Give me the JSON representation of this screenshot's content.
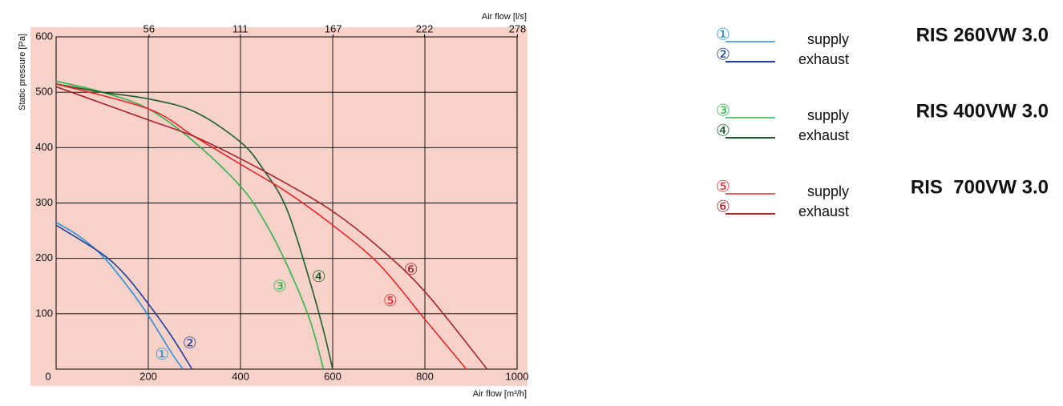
{
  "chart_data": {
    "type": "line",
    "y_label": "Static pressure [Pa]",
    "x_label": "Air flow [m³/h]",
    "x2_label": "Air flow [l/s]",
    "xlim": [
      0,
      1000
    ],
    "xticks": [
      0,
      200,
      400,
      600,
      800,
      1000
    ],
    "x2lim": [
      0,
      277.78
    ],
    "x2ticks": [
      56,
      111,
      167,
      222,
      278
    ],
    "ylim": [
      0,
      600
    ],
    "yticks": [
      100,
      200,
      300,
      400,
      500,
      600
    ],
    "grid": true,
    "background": "#f8d1c9",
    "groups": [
      "RIS 260VW 3.0",
      "RIS 400VW 3.0",
      "RIS  700VW 3.0"
    ],
    "series": [
      {
        "name": "supply",
        "label": "①",
        "color": "#2a8fd6",
        "label_at": [
          230,
          25
        ],
        "x": [
          0,
          50,
          100,
          150,
          200,
          250,
          275
        ],
        "values": [
          265,
          240,
          205,
          155,
          97,
          30,
          0
        ]
      },
      {
        "name": "exhaust",
        "label": "②",
        "color": "#1f3f9a",
        "label_at": [
          290,
          45
        ],
        "x": [
          0,
          100,
          150,
          200,
          250,
          295
        ],
        "values": [
          260,
          208,
          170,
          118,
          60,
          0
        ]
      },
      {
        "name": "supply",
        "label": "③",
        "color": "#2fb34a",
        "label_at": [
          485,
          148
        ],
        "x": [
          0,
          100,
          200,
          300,
          400,
          450,
          500,
          550,
          580
        ],
        "values": [
          520,
          500,
          470,
          410,
          330,
          270,
          190,
          90,
          0
        ]
      },
      {
        "name": "exhaust",
        "label": "④",
        "color": "#1a5e2a",
        "label_at": [
          570,
          165
        ],
        "x": [
          0,
          100,
          200,
          300,
          400,
          450,
          500,
          550,
          580,
          600
        ],
        "values": [
          515,
          500,
          488,
          465,
          410,
          360,
          290,
          160,
          70,
          0
        ]
      },
      {
        "name": "supply",
        "label": "⑤",
        "color": "#e8262a",
        "label_at": [
          725,
          122
        ],
        "x": [
          0,
          200,
          300,
          400,
          500,
          600,
          700,
          800,
          890
        ],
        "values": [
          515,
          470,
          420,
          370,
          320,
          260,
          190,
          90,
          0
        ]
      },
      {
        "name": "exhaust",
        "label": "⑥",
        "color": "#a8232a",
        "label_at": [
          770,
          178
        ],
        "x": [
          0,
          100,
          200,
          300,
          400,
          500,
          600,
          700,
          800,
          935
        ],
        "values": [
          510,
          480,
          450,
          420,
          380,
          335,
          285,
          220,
          140,
          0
        ]
      }
    ]
  }
}
